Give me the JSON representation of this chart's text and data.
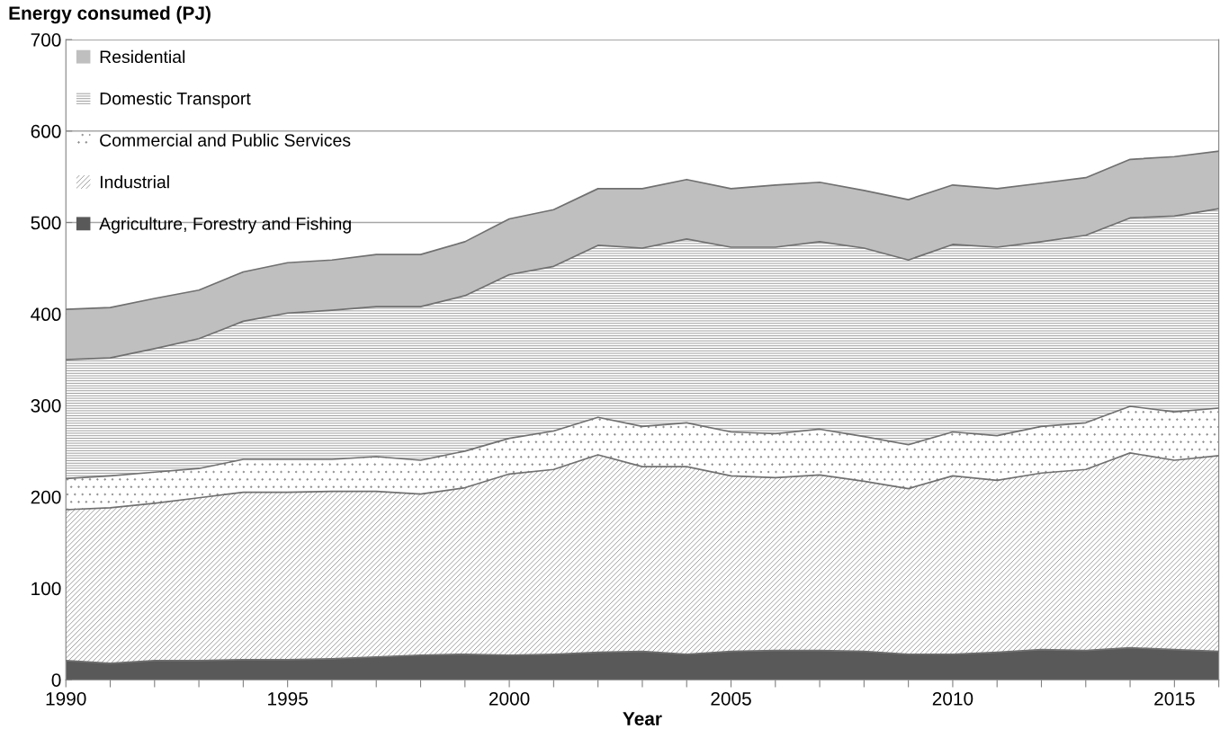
{
  "chart_data": {
    "type": "area",
    "stacked": true,
    "ylabel": "Energy consumed (PJ)",
    "xlabel": "Year",
    "x": [
      1990,
      1991,
      1992,
      1993,
      1994,
      1995,
      1996,
      1997,
      1998,
      1999,
      2000,
      2001,
      2002,
      2003,
      2004,
      2005,
      2006,
      2007,
      2008,
      2009,
      2010,
      2011,
      2012,
      2013,
      2014,
      2015,
      2016
    ],
    "series": [
      {
        "name": "Agriculture, Forestry and Fishing",
        "color": "#595959",
        "values": [
          21,
          18,
          21,
          21,
          22,
          22,
          23,
          25,
          27,
          28,
          27,
          28,
          30,
          31,
          28,
          31,
          32,
          32,
          31,
          28,
          28,
          30,
          33,
          32,
          35,
          33,
          31
        ]
      },
      {
        "name": "Industrial",
        "color": "#ffffff",
        "values": [
          165,
          170,
          172,
          178,
          183,
          183,
          183,
          181,
          176,
          182,
          198,
          202,
          216,
          202,
          205,
          192,
          189,
          192,
          186,
          181,
          195,
          188,
          193,
          198,
          213,
          207,
          214
        ]
      },
      {
        "name": "Commercial and Public Services",
        "color": "#ffffff",
        "values": [
          34,
          35,
          34,
          32,
          36,
          36,
          35,
          38,
          37,
          40,
          39,
          42,
          41,
          44,
          48,
          48,
          48,
          50,
          49,
          48,
          48,
          49,
          51,
          51,
          51,
          53,
          52
        ]
      },
      {
        "name": "Domestic Transport",
        "color": "#ffffff",
        "values": [
          130,
          129,
          135,
          142,
          151,
          160,
          163,
          164,
          168,
          170,
          179,
          180,
          188,
          195,
          201,
          202,
          204,
          205,
          206,
          202,
          205,
          206,
          202,
          205,
          206,
          214,
          218
        ]
      },
      {
        "name": "Residential",
        "color": "#bfbfbf",
        "values": [
          55,
          55,
          55,
          53,
          54,
          55,
          55,
          57,
          57,
          59,
          61,
          62,
          62,
          65,
          65,
          64,
          68,
          65,
          63,
          66,
          65,
          64,
          64,
          63,
          64,
          65,
          63
        ]
      }
    ],
    "xlim": [
      1990,
      2016
    ],
    "xticks": [
      1990,
      {
        "value": 1991,
        "label": null
      },
      {
        "value": 1992,
        "label": null
      },
      {
        "value": 1993,
        "label": null
      },
      {
        "value": 1994,
        "label": null
      },
      1995,
      {
        "value": 1996,
        "label": null
      },
      {
        "value": 1997,
        "label": null
      },
      {
        "value": 1998,
        "label": null
      },
      {
        "value": 1999,
        "label": null
      },
      2000,
      {
        "value": 2001,
        "label": null
      },
      {
        "value": 2002,
        "label": null
      },
      {
        "value": 2003,
        "label": null
      },
      {
        "value": 2004,
        "label": null
      },
      2005,
      {
        "value": 2006,
        "label": null
      },
      {
        "value": 2007,
        "label": null
      },
      {
        "value": 2008,
        "label": null
      },
      {
        "value": 2009,
        "label": null
      },
      2010,
      {
        "value": 2011,
        "label": null
      },
      {
        "value": 2012,
        "label": null
      },
      {
        "value": 2013,
        "label": null
      },
      {
        "value": 2014,
        "label": null
      },
      2015,
      {
        "value": 2016,
        "label": null
      }
    ],
    "ylim": [
      0,
      700
    ],
    "yticks": [
      0,
      100,
      200,
      300,
      400,
      500,
      600,
      700
    ],
    "grid": "y",
    "legend": "top left"
  }
}
